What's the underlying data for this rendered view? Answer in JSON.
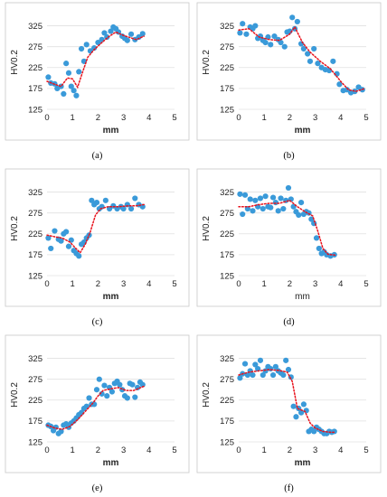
{
  "figure": {
    "marker_color": "#3a9ad9",
    "trend_color": "#e8121c",
    "grid_color": "#e0e0e0",
    "ylabel": "HV0.2",
    "xlabel": "mm",
    "light_ylabel_color": "#8a8a8a",
    "light_xlabel_color": "#8a8a8a"
  },
  "chart_data": [
    {
      "type": "scatter",
      "caption": "(a)",
      "xlabel": "mm",
      "ylabel": "HV0.2",
      "xticks": [
        "0",
        "1",
        "2",
        "3",
        "4",
        "5"
      ],
      "yticks": [
        "125",
        "175",
        "225",
        "275",
        "325"
      ],
      "xlim": [
        0,
        5
      ],
      "ylim": [
        125,
        350
      ],
      "grid": "horizontal",
      "points": [
        [
          0.05,
          202
        ],
        [
          0.15,
          188
        ],
        [
          0.3,
          186
        ],
        [
          0.4,
          175
        ],
        [
          0.55,
          180
        ],
        [
          0.65,
          162
        ],
        [
          0.75,
          235
        ],
        [
          0.85,
          212
        ],
        [
          0.95,
          180
        ],
        [
          1.05,
          170
        ],
        [
          1.15,
          158
        ],
        [
          1.25,
          215
        ],
        [
          1.35,
          270
        ],
        [
          1.45,
          240
        ],
        [
          1.55,
          280
        ],
        [
          1.7,
          265
        ],
        [
          1.85,
          272
        ],
        [
          2.0,
          285
        ],
        [
          2.15,
          292
        ],
        [
          2.25,
          308
        ],
        [
          2.35,
          298
        ],
        [
          2.5,
          312
        ],
        [
          2.6,
          322
        ],
        [
          2.7,
          318
        ],
        [
          2.8,
          310
        ],
        [
          2.95,
          300
        ],
        [
          3.05,
          295
        ],
        [
          3.15,
          290
        ],
        [
          3.3,
          305
        ],
        [
          3.45,
          292
        ],
        [
          3.6,
          298
        ],
        [
          3.75,
          306
        ]
      ],
      "trend": [
        [
          0,
          192
        ],
        [
          0.3,
          185
        ],
        [
          0.55,
          180
        ],
        [
          0.8,
          200
        ],
        [
          1.0,
          198
        ],
        [
          1.2,
          178
        ],
        [
          1.4,
          215
        ],
        [
          1.6,
          250
        ],
        [
          1.85,
          268
        ],
        [
          2.1,
          282
        ],
        [
          2.4,
          298
        ],
        [
          2.7,
          310
        ],
        [
          3.0,
          302
        ],
        [
          3.3,
          296
        ],
        [
          3.5,
          292
        ],
        [
          3.8,
          300
        ]
      ]
    },
    {
      "type": "scatter",
      "caption": "(b)",
      "xlabel": "mm",
      "ylabel": "HV0.2",
      "xticks": [
        "0",
        "1",
        "2",
        "3",
        "4",
        "5"
      ],
      "yticks": [
        "125",
        "175",
        "225",
        "275",
        "325"
      ],
      "xlim": [
        0,
        5
      ],
      "ylim": [
        125,
        350
      ],
      "grid": "horizontal",
      "points": [
        [
          0.05,
          308
        ],
        [
          0.15,
          330
        ],
        [
          0.3,
          305
        ],
        [
          0.45,
          322
        ],
        [
          0.55,
          318
        ],
        [
          0.65,
          325
        ],
        [
          0.75,
          295
        ],
        [
          0.85,
          300
        ],
        [
          0.95,
          290
        ],
        [
          1.05,
          285
        ],
        [
          1.15,
          298
        ],
        [
          1.25,
          280
        ],
        [
          1.4,
          300
        ],
        [
          1.55,
          292
        ],
        [
          1.65,
          285
        ],
        [
          1.8,
          275
        ],
        [
          1.9,
          310
        ],
        [
          2.0,
          312
        ],
        [
          2.1,
          345
        ],
        [
          2.2,
          318
        ],
        [
          2.3,
          335
        ],
        [
          2.45,
          282
        ],
        [
          2.55,
          270
        ],
        [
          2.7,
          258
        ],
        [
          2.8,
          240
        ],
        [
          2.95,
          270
        ],
        [
          3.1,
          235
        ],
        [
          3.25,
          225
        ],
        [
          3.4,
          220
        ],
        [
          3.55,
          218
        ],
        [
          3.7,
          240
        ],
        [
          3.85,
          210
        ],
        [
          3.95,
          185
        ],
        [
          4.1,
          170
        ],
        [
          4.25,
          172
        ],
        [
          4.4,
          165
        ],
        [
          4.55,
          168
        ],
        [
          4.7,
          178
        ],
        [
          4.85,
          172
        ]
      ],
      "trend": [
        [
          0,
          315
        ],
        [
          0.4,
          318
        ],
        [
          0.8,
          298
        ],
        [
          1.2,
          292
        ],
        [
          1.6,
          290
        ],
        [
          2.0,
          305
        ],
        [
          2.2,
          322
        ],
        [
          2.5,
          285
        ],
        [
          2.8,
          262
        ],
        [
          3.2,
          240
        ],
        [
          3.6,
          222
        ],
        [
          4.0,
          192
        ],
        [
          4.3,
          172
        ],
        [
          4.6,
          168
        ],
        [
          4.9,
          174
        ]
      ]
    },
    {
      "type": "scatter",
      "caption": "(c)",
      "xlabel": "mm",
      "ylabel": "HV0.2",
      "xticks": [
        "0",
        "1",
        "2",
        "3",
        "4",
        "5"
      ],
      "yticks": [
        "125",
        "175",
        "225",
        "275",
        "325"
      ],
      "xlim": [
        0,
        5
      ],
      "ylim": [
        125,
        350
      ],
      "grid": "horizontal",
      "points": [
        [
          0.05,
          215
        ],
        [
          0.15,
          190
        ],
        [
          0.3,
          232
        ],
        [
          0.45,
          212
        ],
        [
          0.55,
          208
        ],
        [
          0.65,
          225
        ],
        [
          0.75,
          230
        ],
        [
          0.85,
          195
        ],
        [
          0.95,
          210
        ],
        [
          1.05,
          185
        ],
        [
          1.15,
          178
        ],
        [
          1.25,
          172
        ],
        [
          1.35,
          200
        ],
        [
          1.45,
          205
        ],
        [
          1.55,
          215
        ],
        [
          1.65,
          222
        ],
        [
          1.75,
          305
        ],
        [
          1.85,
          295
        ],
        [
          1.95,
          300
        ],
        [
          2.05,
          285
        ],
        [
          2.15,
          290
        ],
        [
          2.3,
          305
        ],
        [
          2.45,
          285
        ],
        [
          2.6,
          292
        ],
        [
          2.75,
          285
        ],
        [
          2.9,
          290
        ],
        [
          3.0,
          285
        ],
        [
          3.15,
          295
        ],
        [
          3.3,
          285
        ],
        [
          3.45,
          310
        ],
        [
          3.6,
          295
        ],
        [
          3.75,
          290
        ]
      ],
      "trend": [
        [
          0,
          222
        ],
        [
          0.3,
          218
        ],
        [
          0.6,
          215
        ],
        [
          0.9,
          205
        ],
        [
          1.1,
          192
        ],
        [
          1.3,
          180
        ],
        [
          1.5,
          200
        ],
        [
          1.7,
          230
        ],
        [
          1.9,
          270
        ],
        [
          2.1,
          285
        ],
        [
          2.4,
          290
        ],
        [
          2.8,
          290
        ],
        [
          3.2,
          292
        ],
        [
          3.5,
          292
        ],
        [
          3.8,
          295
        ]
      ]
    },
    {
      "type": "scatter",
      "caption": "(d)",
      "xlabel": "mm",
      "ylabel": "HV0.2",
      "xticks": [
        "0",
        "1",
        "2",
        "3",
        "4",
        "5"
      ],
      "yticks": [
        "125",
        "175",
        "225",
        "275",
        "325"
      ],
      "xlim": [
        0,
        5
      ],
      "ylim": [
        125,
        350
      ],
      "grid": "horizontal",
      "points": [
        [
          0.05,
          320
        ],
        [
          0.15,
          272
        ],
        [
          0.25,
          318
        ],
        [
          0.35,
          285
        ],
        [
          0.45,
          308
        ],
        [
          0.55,
          280
        ],
        [
          0.65,
          305
        ],
        [
          0.75,
          290
        ],
        [
          0.85,
          310
        ],
        [
          0.95,
          285
        ],
        [
          1.05,
          315
        ],
        [
          1.15,
          290
        ],
        [
          1.25,
          288
        ],
        [
          1.35,
          312
        ],
        [
          1.45,
          300
        ],
        [
          1.55,
          280
        ],
        [
          1.65,
          310
        ],
        [
          1.75,
          285
        ],
        [
          1.85,
          305
        ],
        [
          1.95,
          335
        ],
        [
          2.05,
          308
        ],
        [
          2.15,
          290
        ],
        [
          2.25,
          278
        ],
        [
          2.35,
          270
        ],
        [
          2.45,
          300
        ],
        [
          2.55,
          272
        ],
        [
          2.65,
          278
        ],
        [
          2.75,
          275
        ],
        [
          2.85,
          260
        ],
        [
          2.95,
          250
        ],
        [
          3.05,
          215
        ],
        [
          3.15,
          190
        ],
        [
          3.25,
          178
        ],
        [
          3.35,
          182
        ],
        [
          3.45,
          175
        ],
        [
          3.6,
          172
        ],
        [
          3.75,
          175
        ]
      ],
      "trend": [
        [
          0,
          290
        ],
        [
          0.4,
          290
        ],
        [
          0.8,
          295
        ],
        [
          1.2,
          298
        ],
        [
          1.6,
          298
        ],
        [
          2.0,
          305
        ],
        [
          2.3,
          290
        ],
        [
          2.6,
          278
        ],
        [
          2.9,
          268
        ],
        [
          3.1,
          232
        ],
        [
          3.3,
          190
        ],
        [
          3.5,
          176
        ],
        [
          3.8,
          174
        ]
      ]
    },
    {
      "type": "scatter",
      "caption": "(e)",
      "xlabel": "mm",
      "ylabel": "HV0.2",
      "xticks": [
        "0",
        "1",
        "2",
        "3",
        "4",
        "5"
      ],
      "yticks": [
        "125",
        "175",
        "225",
        "275",
        "325"
      ],
      "xlim": [
        0,
        5
      ],
      "ylim": [
        125,
        350
      ],
      "grid": "horizontal",
      "points": [
        [
          0.05,
          165
        ],
        [
          0.15,
          162
        ],
        [
          0.25,
          152
        ],
        [
          0.35,
          160
        ],
        [
          0.45,
          145
        ],
        [
          0.55,
          150
        ],
        [
          0.65,
          165
        ],
        [
          0.75,
          168
        ],
        [
          0.85,
          160
        ],
        [
          0.95,
          170
        ],
        [
          1.05,
          175
        ],
        [
          1.15,
          182
        ],
        [
          1.25,
          190
        ],
        [
          1.35,
          195
        ],
        [
          1.45,
          205
        ],
        [
          1.55,
          210
        ],
        [
          1.65,
          230
        ],
        [
          1.75,
          215
        ],
        [
          1.85,
          215
        ],
        [
          1.95,
          250
        ],
        [
          2.05,
          275
        ],
        [
          2.15,
          240
        ],
        [
          2.25,
          260
        ],
        [
          2.35,
          235
        ],
        [
          2.45,
          255
        ],
        [
          2.55,
          245
        ],
        [
          2.65,
          265
        ],
        [
          2.75,
          270
        ],
        [
          2.85,
          262
        ],
        [
          2.95,
          250
        ],
        [
          3.05,
          235
        ],
        [
          3.15,
          230
        ],
        [
          3.25,
          265
        ],
        [
          3.35,
          262
        ],
        [
          3.45,
          232
        ],
        [
          3.55,
          255
        ],
        [
          3.65,
          268
        ],
        [
          3.75,
          262
        ]
      ],
      "trend": [
        [
          0,
          165
        ],
        [
          0.3,
          158
        ],
        [
          0.6,
          155
        ],
        [
          0.9,
          162
        ],
        [
          1.2,
          178
        ],
        [
          1.5,
          198
        ],
        [
          1.8,
          218
        ],
        [
          2.0,
          235
        ],
        [
          2.2,
          248
        ],
        [
          2.5,
          252
        ],
        [
          2.8,
          255
        ],
        [
          3.1,
          248
        ],
        [
          3.4,
          248
        ],
        [
          3.8,
          258
        ]
      ]
    },
    {
      "type": "scatter",
      "caption": "(f)",
      "xlabel": "mm",
      "ylabel": "HV0.2",
      "xticks": [
        "0",
        "1",
        "2",
        "3",
        "4",
        "5"
      ],
      "yticks": [
        "125",
        "175",
        "225",
        "275",
        "325"
      ],
      "xlim": [
        0,
        5
      ],
      "ylim": [
        125,
        350
      ],
      "grid": "horizontal",
      "points": [
        [
          0.05,
          278
        ],
        [
          0.15,
          288
        ],
        [
          0.25,
          312
        ],
        [
          0.35,
          285
        ],
        [
          0.45,
          295
        ],
        [
          0.55,
          285
        ],
        [
          0.65,
          310
        ],
        [
          0.75,
          300
        ],
        [
          0.85,
          320
        ],
        [
          0.95,
          285
        ],
        [
          1.05,
          295
        ],
        [
          1.15,
          305
        ],
        [
          1.25,
          300
        ],
        [
          1.35,
          285
        ],
        [
          1.45,
          305
        ],
        [
          1.55,
          295
        ],
        [
          1.65,
          290
        ],
        [
          1.75,
          285
        ],
        [
          1.85,
          320
        ],
        [
          1.95,
          298
        ],
        [
          2.05,
          280
        ],
        [
          2.15,
          210
        ],
        [
          2.25,
          185
        ],
        [
          2.35,
          205
        ],
        [
          2.45,
          195
        ],
        [
          2.55,
          215
        ],
        [
          2.65,
          200
        ],
        [
          2.75,
          150
        ],
        [
          2.85,
          155
        ],
        [
          2.95,
          150
        ],
        [
          3.05,
          160
        ],
        [
          3.15,
          155
        ],
        [
          3.25,
          150
        ],
        [
          3.35,
          145
        ],
        [
          3.45,
          145
        ],
        [
          3.55,
          150
        ],
        [
          3.65,
          148
        ],
        [
          3.75,
          150
        ]
      ],
      "trend": [
        [
          0,
          285
        ],
        [
          0.4,
          292
        ],
        [
          0.8,
          295
        ],
        [
          1.2,
          298
        ],
        [
          1.6,
          296
        ],
        [
          1.9,
          292
        ],
        [
          2.1,
          270
        ],
        [
          2.3,
          205
        ],
        [
          2.6,
          198
        ],
        [
          2.8,
          170
        ],
        [
          3.0,
          158
        ],
        [
          3.3,
          150
        ],
        [
          3.6,
          148
        ],
        [
          3.8,
          148
        ]
      ]
    }
  ]
}
